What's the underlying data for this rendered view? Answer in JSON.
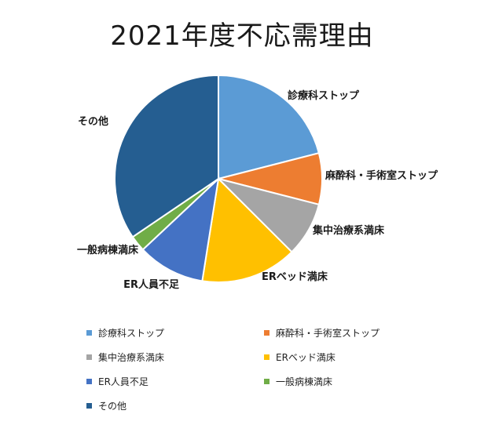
{
  "chart_data": {
    "type": "pie",
    "title": "2021年度不応需理由",
    "categories": [
      "診療科ストップ",
      "麻酔科・手術室ストップ",
      "集中治療系満床",
      "ERベッド満床",
      "ER人員不足",
      "一般病棟満床",
      "その他"
    ],
    "values": [
      21.0,
      8.0,
      8.5,
      15.0,
      10.5,
      2.5,
      34.5
    ],
    "colors": [
      "#5B9BD5",
      "#ED7D31",
      "#A5A5A5",
      "#FFC000",
      "#4472C4",
      "#70AD47",
      "#255E91"
    ],
    "legend_position": "bottom"
  }
}
